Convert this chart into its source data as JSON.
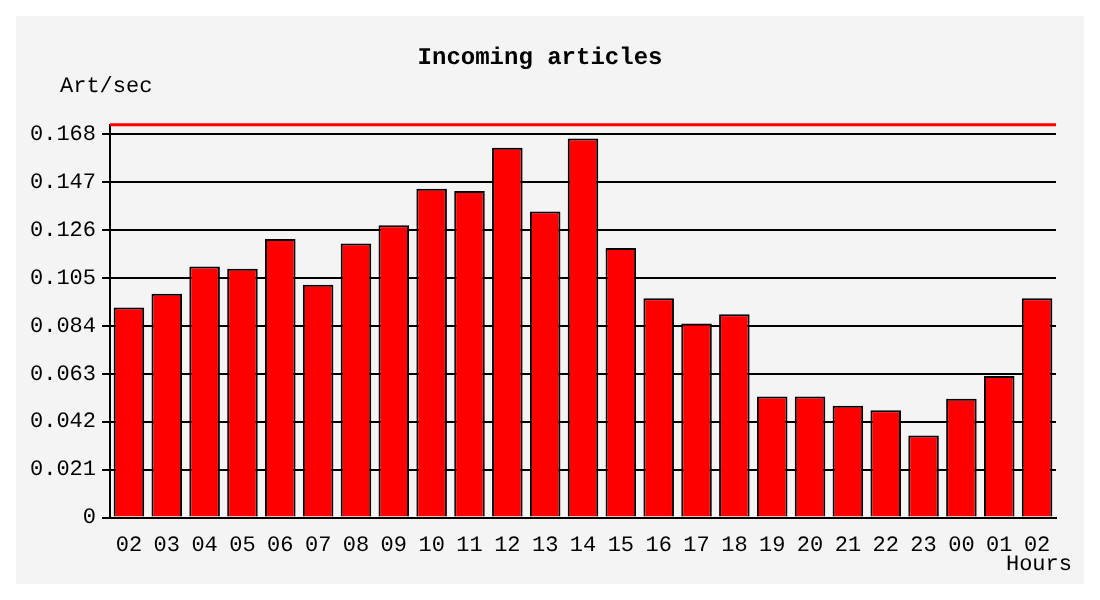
{
  "chart_data": {
    "type": "bar",
    "title": "Incoming articles",
    "ylabel": "Art/sec",
    "xlabel": "Hours",
    "categories": [
      "02",
      "03",
      "04",
      "05",
      "06",
      "07",
      "08",
      "09",
      "10",
      "11",
      "12",
      "13",
      "14",
      "15",
      "16",
      "17",
      "18",
      "19",
      "20",
      "21",
      "22",
      "23",
      "00",
      "01",
      "02"
    ],
    "values": [
      0.092,
      0.098,
      0.11,
      0.109,
      0.122,
      0.102,
      0.12,
      0.128,
      0.144,
      0.143,
      0.162,
      0.134,
      0.166,
      0.118,
      0.096,
      0.085,
      0.089,
      0.053,
      0.053,
      0.049,
      0.047,
      0.036,
      0.052,
      0.062,
      0.096
    ],
    "color": "#ff0000",
    "ylim": [
      0,
      0.172
    ],
    "yticks": [
      0,
      0.021,
      0.042,
      0.063,
      0.084,
      0.105,
      0.126,
      0.147,
      0.168
    ],
    "ref_lines": [
      {
        "axis": "y",
        "value": 0.172,
        "color": "#ff0000"
      }
    ],
    "grid": "y",
    "legend": false
  }
}
